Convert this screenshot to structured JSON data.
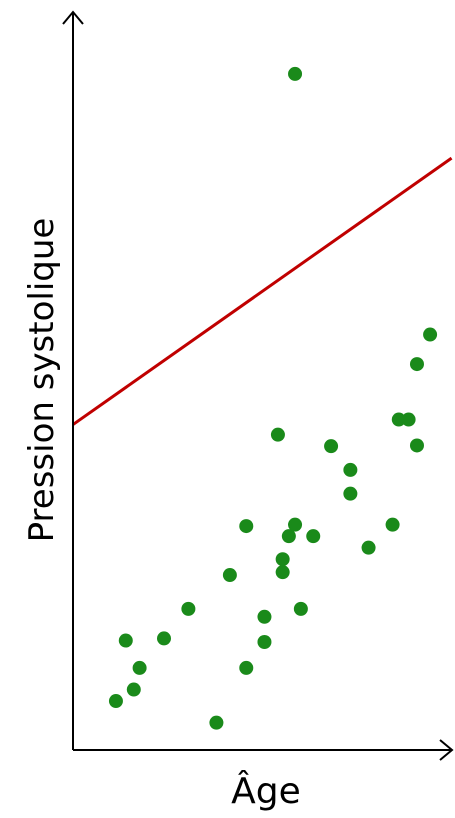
{
  "chart_data": {
    "type": "scatter",
    "title": "",
    "xlabel": "Âge",
    "ylabel": "Pression systolique",
    "xlim": [
      0,
      100
    ],
    "ylim": [
      0,
      100
    ],
    "grid": false,
    "legend": "none",
    "colors": {
      "points": "#1a8a1a",
      "line": "#c00000",
      "axes": "#000000"
    },
    "series": [
      {
        "values": [
          {
            "x": 11.8,
            "y": 6.8
          },
          {
            "x": 16.7,
            "y": 8.4
          },
          {
            "x": 14.5,
            "y": 15.2
          },
          {
            "x": 18.3,
            "y": 11.4
          },
          {
            "x": 25.0,
            "y": 15.5
          },
          {
            "x": 31.7,
            "y": 19.6
          },
          {
            "x": 39.4,
            "y": 3.8
          },
          {
            "x": 43.1,
            "y": 24.3
          },
          {
            "x": 47.6,
            "y": 11.4
          },
          {
            "x": 52.6,
            "y": 15.0
          },
          {
            "x": 52.6,
            "y": 18.5
          },
          {
            "x": 47.6,
            "y": 31.1
          },
          {
            "x": 57.6,
            "y": 24.7
          },
          {
            "x": 57.6,
            "y": 26.5
          },
          {
            "x": 59.3,
            "y": 29.7
          },
          {
            "x": 61.0,
            "y": 31.3
          },
          {
            "x": 62.6,
            "y": 19.6
          },
          {
            "x": 66.0,
            "y": 29.7
          },
          {
            "x": 56.3,
            "y": 43.8
          },
          {
            "x": 70.9,
            "y": 42.2
          },
          {
            "x": 76.2,
            "y": 38.9
          },
          {
            "x": 76.2,
            "y": 35.6
          },
          {
            "x": 81.2,
            "y": 28.1
          },
          {
            "x": 87.8,
            "y": 31.3
          },
          {
            "x": 89.5,
            "y": 45.9
          },
          {
            "x": 92.2,
            "y": 45.9
          },
          {
            "x": 94.5,
            "y": 42.3
          },
          {
            "x": 94.5,
            "y": 53.6
          },
          {
            "x": 98.1,
            "y": 57.7
          },
          {
            "x": 61.0,
            "y": 93.9
          }
        ]
      }
    ],
    "line": {
      "x": [
        0,
        104
      ],
      "y": [
        45.2,
        82.2
      ]
    }
  }
}
